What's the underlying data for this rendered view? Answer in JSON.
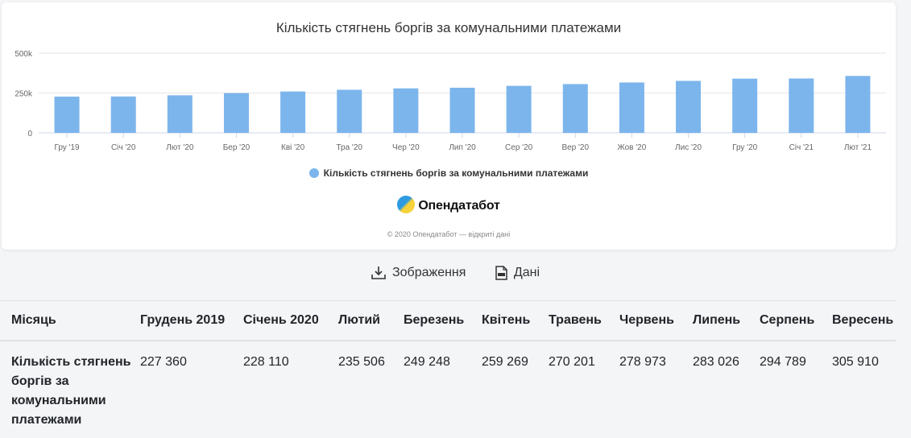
{
  "chart_data": {
    "type": "bar",
    "title": "Кількість стягнень боргів за комунальними платежами",
    "categories": [
      "Гру '19",
      "Січ '20",
      "Лют '20",
      "Бер '20",
      "Кві '20",
      "Тра '20",
      "Чер '20",
      "Лип '20",
      "Сер '20",
      "Вер '20",
      "Жов '20",
      "Лис '20",
      "Гру '20",
      "Січ '21",
      "Лют '21"
    ],
    "series": [
      {
        "name": "Кількість стягнень боргів за комунальними платежами",
        "values": [
          227360,
          228110,
          235506,
          249248,
          259269,
          270201,
          278973,
          283026,
          294789,
          305910,
          316000,
          326000,
          340000,
          341000,
          357000
        ]
      }
    ],
    "ylim": [
      0,
      500000
    ],
    "yticks": [
      "0",
      "250k",
      "500k"
    ],
    "grid": true,
    "legend_position": "bottom-center",
    "color": "#7cb5ec"
  },
  "branding": {
    "name": "Опендатабот",
    "credits": "© 2020 Опендатабот — відкриті дані"
  },
  "actions": {
    "image_label": "Зображення",
    "data_label": "Дані"
  },
  "table": {
    "header_label": "Місяць",
    "columns": [
      "Грудень 2019",
      "Січень 2020",
      "Лютий",
      "Березень",
      "Квітень",
      "Травень",
      "Червень",
      "Липень",
      "Серпень",
      "Вересень"
    ],
    "row_label": "Кількість стягнень боргів за комунальними платежами",
    "values": [
      "227 360",
      "228 110",
      "235 506",
      "249 248",
      "259 269",
      "270 201",
      "278 973",
      "283 026",
      "294 789",
      "305 910"
    ]
  }
}
